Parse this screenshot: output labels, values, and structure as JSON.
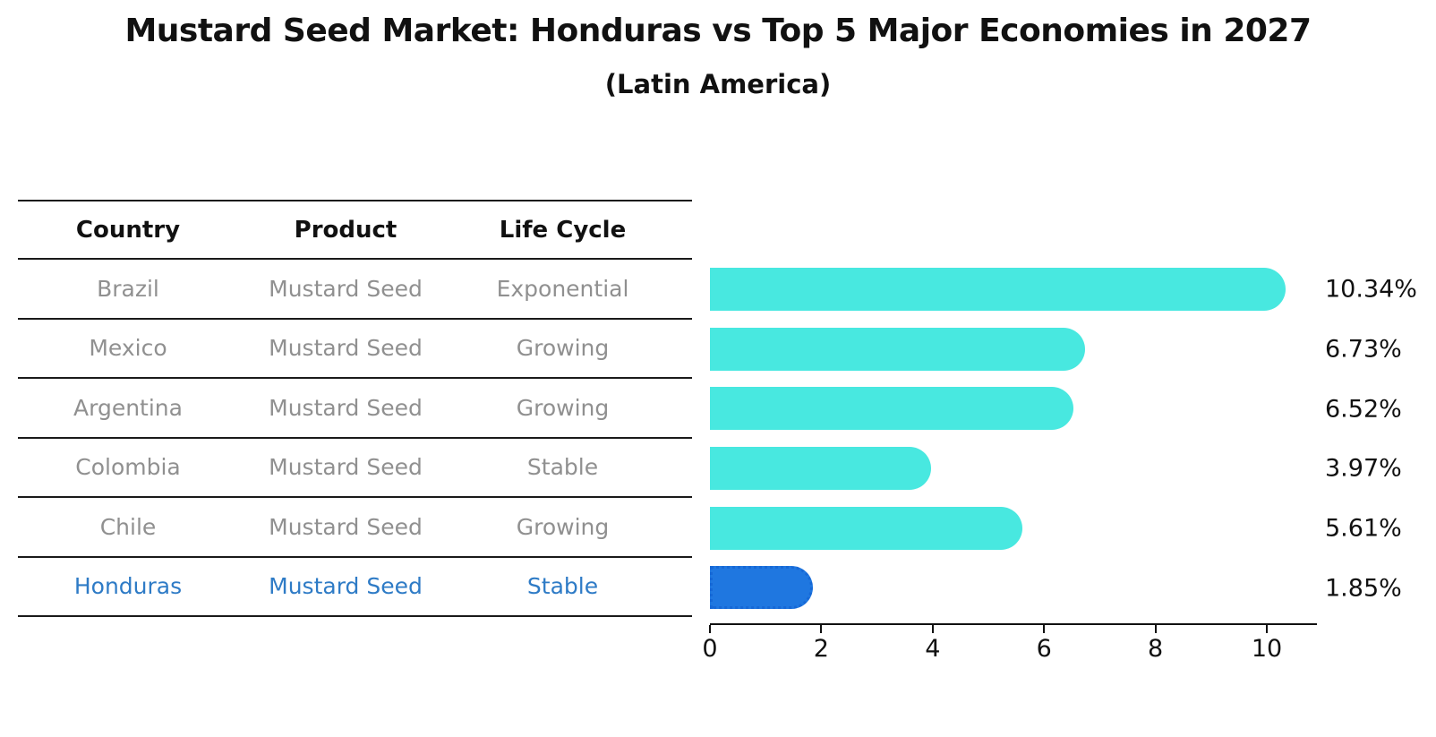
{
  "chart_data": {
    "type": "bar",
    "orientation": "horizontal",
    "title": "Mustard Seed Market: Honduras vs Top 5 Major Economies in 2027",
    "subtitle": "(Latin America)",
    "categories": [
      "Brazil",
      "Mexico",
      "Argentina",
      "Colombia",
      "Chile",
      "Honduras"
    ],
    "values": [
      10.34,
      6.73,
      6.52,
      3.97,
      5.61,
      1.85
    ],
    "labels": [
      "10.34%",
      "6.73%",
      "6.52%",
      "3.97%",
      "5.61%",
      "1.85%"
    ],
    "highlight_index": 5,
    "highlight_category": "Honduras",
    "x_ticks": [
      0,
      2,
      4,
      6,
      8,
      10
    ],
    "xlim": [
      0,
      10.9
    ],
    "xlabel": "",
    "ylabel": "",
    "grid": false,
    "legend_position": "none"
  },
  "table": {
    "headers": [
      "Country",
      "Product",
      "Life Cycle"
    ],
    "rows": [
      {
        "country": "Brazil",
        "product": "Mustard Seed",
        "life_cycle": "Exponential",
        "highlight": false
      },
      {
        "country": "Mexico",
        "product": "Mustard Seed",
        "life_cycle": "Growing",
        "highlight": false
      },
      {
        "country": "Argentina",
        "product": "Mustard Seed",
        "life_cycle": "Growing",
        "highlight": false
      },
      {
        "country": "Colombia",
        "product": "Mustard Seed",
        "life_cycle": "Stable",
        "highlight": false
      },
      {
        "country": "Chile",
        "product": "Mustard Seed",
        "life_cycle": "Growing",
        "highlight": false
      },
      {
        "country": "Honduras",
        "product": "Mustard Seed",
        "life_cycle": "Stable",
        "highlight": true
      }
    ]
  },
  "colors": {
    "bar": "#48e8e0",
    "bar_highlight": "#1f77e0",
    "bar_highlight_border": "#1668d6",
    "table_text": "#909090",
    "highlight_text": "#2e7bc6",
    "text": "#111111"
  }
}
